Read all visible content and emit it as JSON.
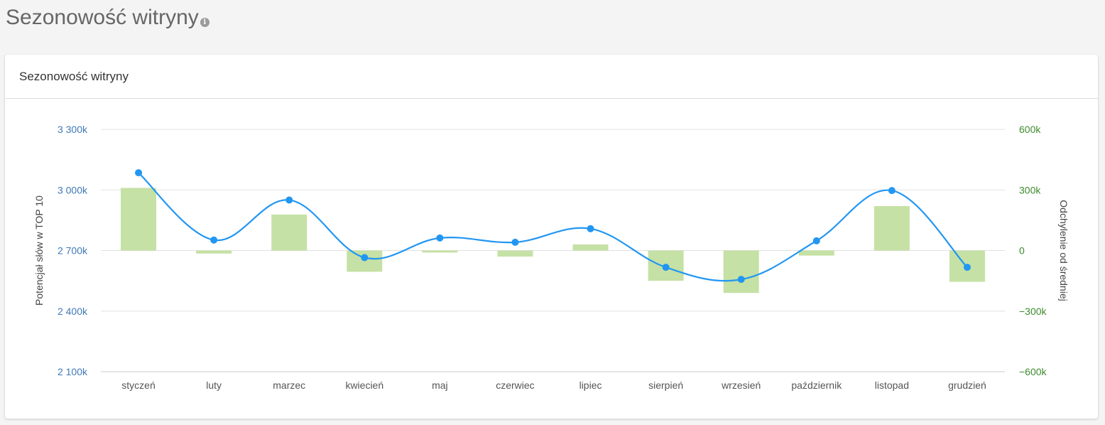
{
  "page": {
    "title": "Sezonowość witryny",
    "info_icon": "info-icon"
  },
  "card": {
    "title": "Sezonowość witryny"
  },
  "colors": {
    "line": "#2196f3",
    "bars": "#c5e1a5",
    "left_axis": "#3f79b6",
    "right_axis": "#3d8a2e",
    "grid": "#e0e0e0"
  },
  "chart_data": {
    "type": "bar",
    "categories": [
      "styczeń",
      "luty",
      "marzec",
      "kwiecień",
      "maj",
      "czerwiec",
      "lipiec",
      "sierpień",
      "wrzesień",
      "październik",
      "listopad",
      "grudzień"
    ],
    "left_axis": {
      "label": "Potencjał słów w TOP 10",
      "ylim": [
        2100000,
        3300000
      ],
      "ticks": [
        3300000,
        3000000,
        2700000,
        2400000,
        2100000
      ],
      "tick_labels": [
        "3 300k",
        "3 000k",
        "2 700k",
        "2 400k",
        "2 100k"
      ]
    },
    "right_axis": {
      "label": "Odchylenie od średniej",
      "ylim": [
        -600000,
        600000
      ],
      "ticks": [
        600000,
        300000,
        0,
        -300000,
        -600000
      ],
      "tick_labels": [
        "600k",
        "300k",
        "0",
        "−300k",
        "−600k"
      ]
    },
    "series": [
      {
        "type": "line",
        "axis": "left",
        "values": [
          3085000,
          2752000,
          2950000,
          2665000,
          2762000,
          2741000,
          2808000,
          2617000,
          2557000,
          2748000,
          2997000,
          2617000
        ]
      },
      {
        "type": "bar",
        "axis": "right",
        "values": [
          310000,
          -15000,
          178000,
          -105000,
          -10000,
          -30000,
          30000,
          -150000,
          -210000,
          -25000,
          220000,
          -155000
        ]
      }
    ],
    "grid": true,
    "legend": "none"
  }
}
